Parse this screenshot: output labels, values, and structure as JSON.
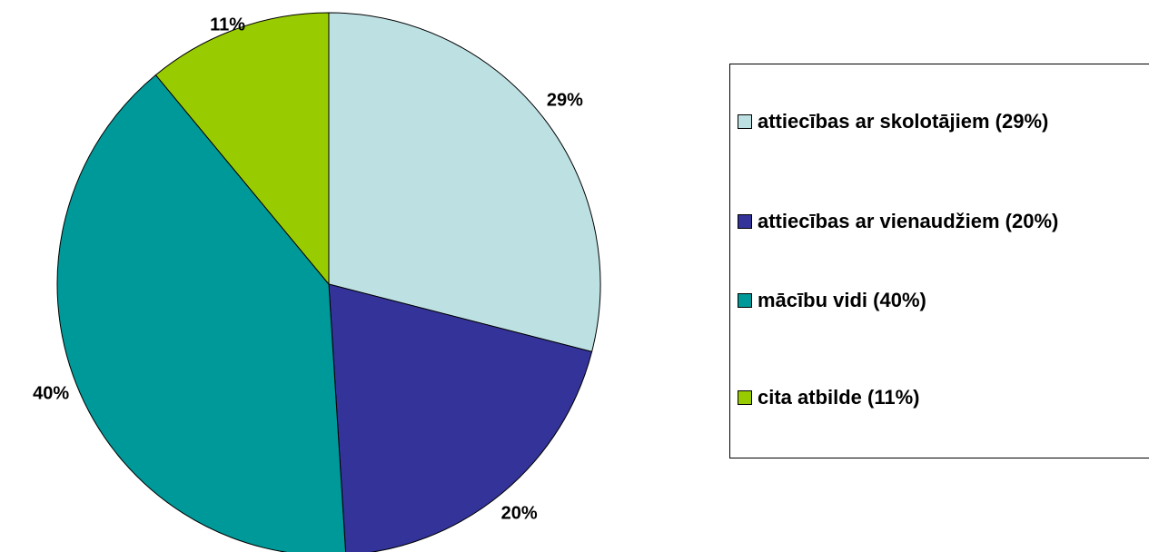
{
  "chart_data": {
    "type": "pie",
    "categories": [
      "attiecības ar skolotājiem (29%)",
      "attiecības ar vienaudžiem (20%)",
      "mācību vidi (40%)",
      "cita atbilde (11%)"
    ],
    "values": [
      29,
      20,
      40,
      11
    ],
    "value_labels": [
      "29%",
      "20%",
      "40%",
      "11%"
    ],
    "colors": [
      "#bde0e3",
      "#333399",
      "#009999",
      "#99cc00"
    ],
    "legend": "right"
  }
}
